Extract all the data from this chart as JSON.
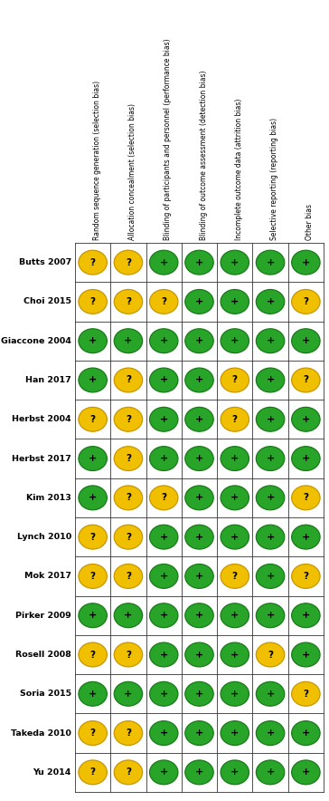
{
  "studies": [
    "Butts 2007",
    "Choi 2015",
    "Giaccone 2004",
    "Han 2017",
    "Herbst 2004",
    "Herbst 2017",
    "Kim 2013",
    "Lynch 2010",
    "Mok 2017",
    "Pirker 2009",
    "Rosell 2008",
    "Soria 2015",
    "Takeda 2010",
    "Yu 2014"
  ],
  "columns": [
    "Random sequence generation (selection bias)",
    "Allocation concealment (selection bias)",
    "Blinding of participants and personnel (performance bias)",
    "Blinding of outcome assessment (detection bias)",
    "Incomplete outcome data (attrition bias)",
    "Selective reporting (reporting bias)",
    "Other bias"
  ],
  "judgments": [
    [
      "?",
      "?",
      "+",
      "+",
      "+",
      "+",
      "+"
    ],
    [
      "?",
      "?",
      "?",
      "+",
      "+",
      "+",
      "?"
    ],
    [
      "+",
      "+",
      "+",
      "+",
      "+",
      "+",
      "+"
    ],
    [
      "+",
      "?",
      "+",
      "+",
      "?",
      "+",
      "?"
    ],
    [
      "?",
      "?",
      "+",
      "+",
      "?",
      "+",
      "+"
    ],
    [
      "+",
      "?",
      "+",
      "+",
      "+",
      "+",
      "+"
    ],
    [
      "+",
      "?",
      "?",
      "+",
      "+",
      "+",
      "?"
    ],
    [
      "?",
      "?",
      "+",
      "+",
      "+",
      "+",
      "+"
    ],
    [
      "?",
      "?",
      "+",
      "+",
      "?",
      "+",
      "?"
    ],
    [
      "+",
      "+",
      "+",
      "+",
      "+",
      "+",
      "+"
    ],
    [
      "?",
      "?",
      "+",
      "+",
      "+",
      "?",
      "+"
    ],
    [
      "+",
      "+",
      "+",
      "+",
      "+",
      "+",
      "?"
    ],
    [
      "?",
      "?",
      "+",
      "+",
      "+",
      "+",
      "+"
    ],
    [
      "?",
      "?",
      "+",
      "+",
      "+",
      "+",
      "+"
    ]
  ],
  "green_color": "#28a428",
  "yellow_color": "#f0c000",
  "green_edge": "#1a7a1a",
  "yellow_edge": "#c89600",
  "background_color": "#ffffff",
  "grid_color": "#333333",
  "text_color": "#000000",
  "figure_width": 3.64,
  "figure_height": 8.84,
  "dpi": 100
}
